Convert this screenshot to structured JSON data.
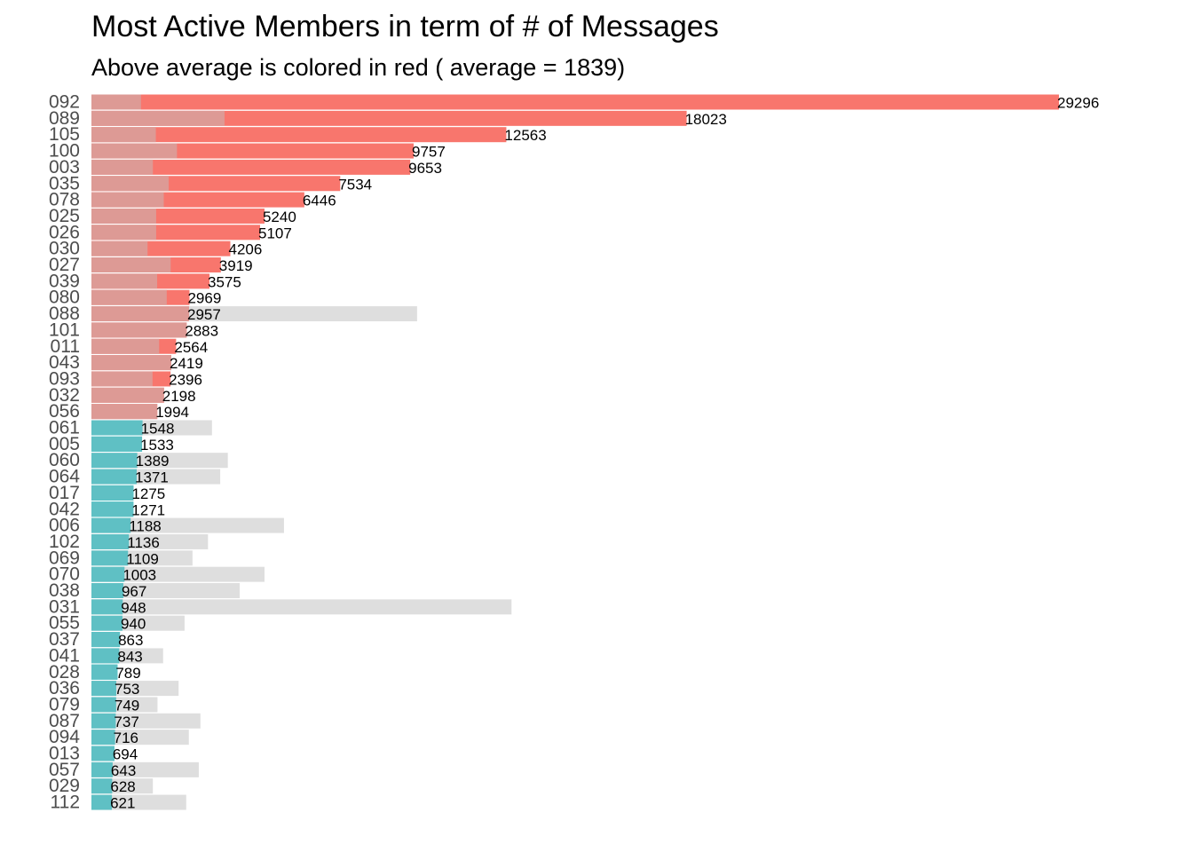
{
  "colors": {
    "above": "#f8766d",
    "above_light": "#dd9a95",
    "below": "#00bfc4",
    "below_light": "#5fc0c4",
    "grey": "#dedede"
  },
  "chart_data": {
    "type": "bar",
    "orientation": "horizontal",
    "title": "Most Active Members in term of # of Messages",
    "subtitle": "Above average is colored in red ( average = 1839)",
    "average": 1839,
    "xlim": [
      0,
      29296
    ],
    "grid": false,
    "categories": [
      "092",
      "089",
      "105",
      "100",
      "003",
      "035",
      "078",
      "025",
      "026",
      "030",
      "027",
      "039",
      "080",
      "088",
      "101",
      "011",
      "043",
      "093",
      "032",
      "056",
      "061",
      "005",
      "060",
      "064",
      "017",
      "042",
      "006",
      "102",
      "069",
      "070",
      "038",
      "031",
      "055",
      "037",
      "041",
      "028",
      "036",
      "079",
      "087",
      "094",
      "013",
      "057",
      "029",
      "112"
    ],
    "values": [
      29296,
      18023,
      12563,
      9757,
      9653,
      7534,
      6446,
      5240,
      5107,
      4206,
      3919,
      3575,
      2969,
      2957,
      2883,
      2564,
      2419,
      2396,
      2198,
      1994,
      1548,
      1533,
      1389,
      1371,
      1275,
      1271,
      1188,
      1136,
      1109,
      1003,
      967,
      948,
      940,
      863,
      843,
      789,
      753,
      749,
      737,
      716,
      694,
      643,
      628,
      621
    ],
    "secondary_values": [
      1500,
      4030,
      1950,
      2590,
      1860,
      2340,
      2190,
      1960,
      1960,
      1700,
      2400,
      1990,
      2280,
      9860,
      2883,
      2050,
      2419,
      1850,
      2198,
      1994,
      3650,
      1533,
      4130,
      3900,
      1275,
      1271,
      5830,
      3530,
      3060,
      5240,
      4490,
      12720,
      2820,
      863,
      2170,
      789,
      2640,
      2000,
      3300,
      2950,
      694,
      3250,
      1860,
      2870
    ]
  }
}
